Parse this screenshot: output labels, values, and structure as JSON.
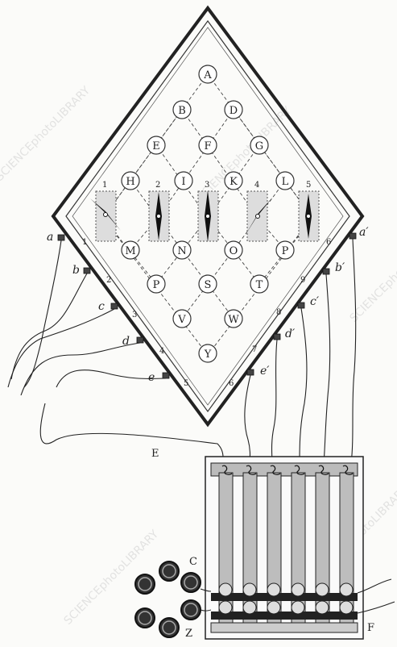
{
  "letters": [
    "A",
    "B",
    "D",
    "E",
    "F",
    "G",
    "H",
    "I",
    "K",
    "L",
    "M",
    "N",
    "O",
    "P",
    "P",
    "S",
    "T",
    "V",
    "W",
    "Y"
  ],
  "needle_numbers": [
    "1",
    "2",
    "3",
    "4",
    "5"
  ],
  "left_terminals": [
    "a",
    "b",
    "c",
    "d",
    "e"
  ],
  "right_terminals": [
    "a′",
    "b′",
    "c′",
    "d′",
    "e′"
  ],
  "left_edge_numbers": [
    "1",
    "2",
    "3",
    "4",
    "5"
  ],
  "right_edge_numbers": [
    "6",
    "9",
    "8",
    "7",
    "6"
  ],
  "wire_label": "E",
  "battery_labels": {
    "c": "C",
    "z": "Z"
  },
  "keyboard_label": "F",
  "watermark": "SCIENCEphotoLIBRARY"
}
